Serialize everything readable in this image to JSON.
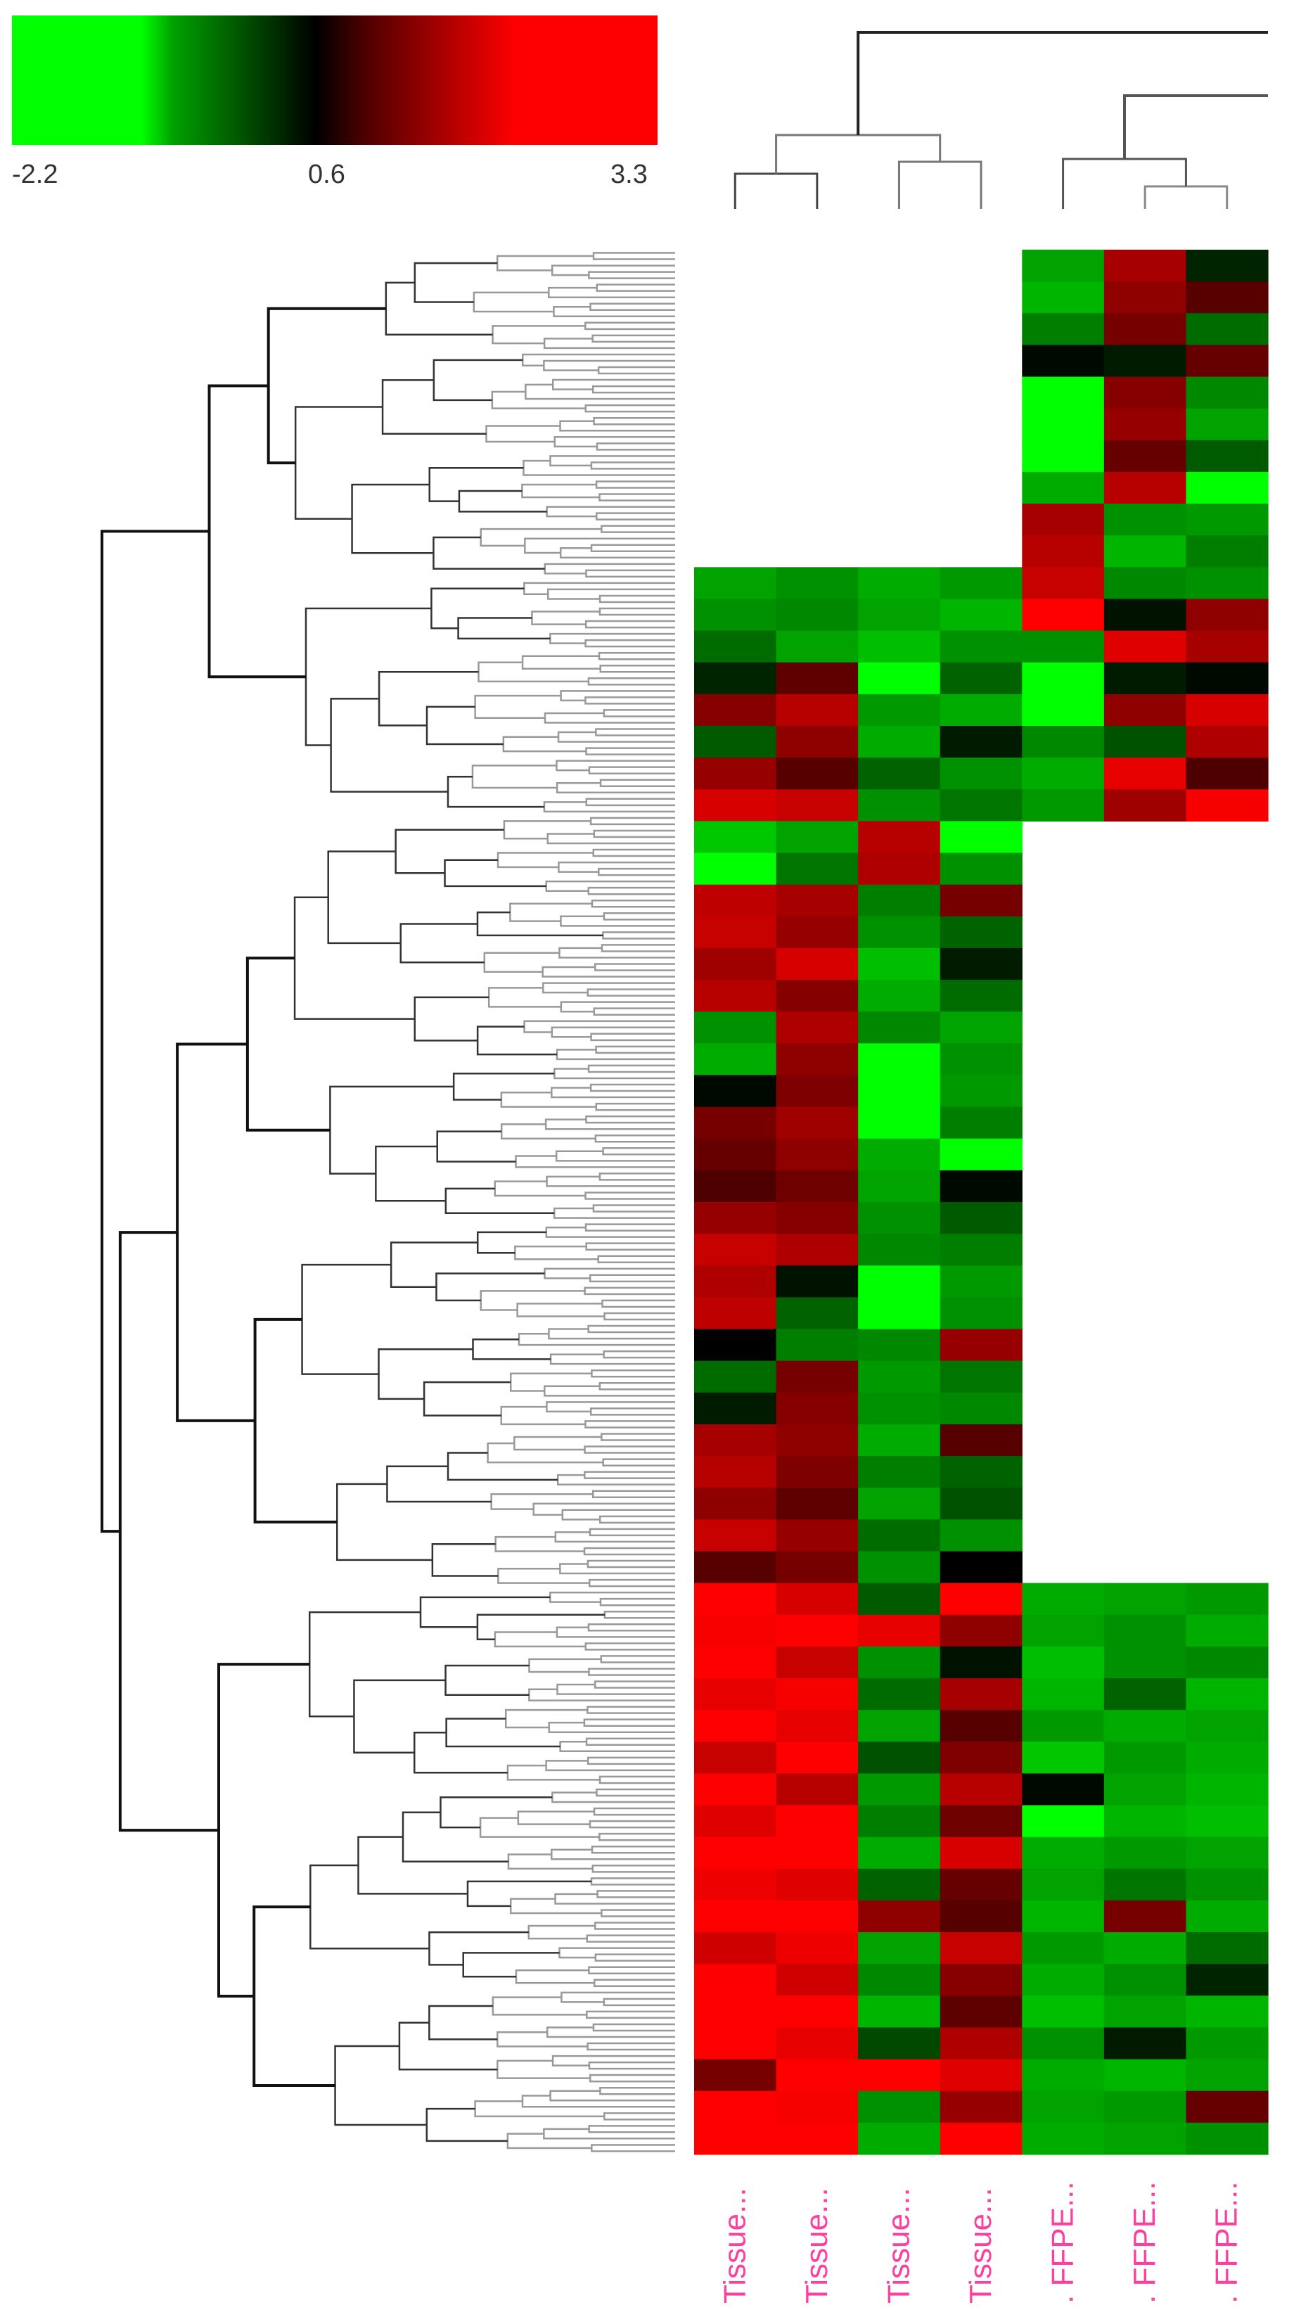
{
  "chart_data": {
    "type": "heatmap",
    "title": "",
    "color_scale": {
      "min": -2.2,
      "mid": 0.6,
      "max": 3.3,
      "tick_labels": [
        "-2.2",
        "0.6",
        "3.3"
      ],
      "colors": {
        "low": "#00ff00",
        "mid": "#000000",
        "high": "#ff0000"
      }
    },
    "columns": [
      "Tissue...",
      "Tissue...",
      "Tissue...",
      "Tissue...",
      ". FFPE...",
      ". FFPE...",
      ". FFPE..."
    ],
    "label_color": "#ff3fa0",
    "row_dendrogram": true,
    "column_dendrogram": true,
    "rows": [
      [
        null,
        null,
        null,
        null,
        -1.2,
        1.8,
        0.2
      ],
      [
        null,
        null,
        null,
        null,
        -1.4,
        1.5,
        0.8
      ],
      [
        null,
        null,
        null,
        null,
        -0.8,
        1.2,
        -0.6
      ],
      [
        null,
        null,
        null,
        null,
        0.5,
        0.3,
        1.0
      ],
      [
        null,
        null,
        null,
        null,
        -2.2,
        1.4,
        -0.9
      ],
      [
        null,
        null,
        null,
        null,
        -2.2,
        1.6,
        -1.2
      ],
      [
        null,
        null,
        null,
        null,
        -2.0,
        1.0,
        -0.4
      ],
      [
        null,
        null,
        null,
        null,
        -1.3,
        2.0,
        -2.0
      ],
      [
        null,
        null,
        null,
        null,
        1.8,
        -1.0,
        -1.1
      ],
      [
        null,
        null,
        null,
        null,
        2.0,
        -1.4,
        -0.8
      ],
      [
        -1.2,
        -1.0,
        -1.3,
        -1.1,
        2.2,
        -0.9,
        -1.0
      ],
      [
        -1.0,
        -0.9,
        -1.2,
        -1.4,
        3.3,
        0.4,
        1.5
      ],
      [
        -0.6,
        -1.2,
        -1.5,
        -1.0,
        -1.0,
        2.5,
        1.8
      ],
      [
        0.2,
        0.9,
        -2.0,
        -0.5,
        -2.2,
        0.3,
        0.5
      ],
      [
        1.4,
        2.0,
        -1.1,
        -1.3,
        -1.8,
        1.5,
        2.4
      ],
      [
        -0.4,
        1.5,
        -1.3,
        0.3,
        -0.9,
        -0.3,
        1.9
      ],
      [
        1.6,
        0.8,
        -0.5,
        -1.0,
        -1.3,
        2.6,
        0.7
      ],
      [
        2.4,
        2.2,
        -1.0,
        -0.7,
        -1.1,
        1.7,
        2.8
      ],
      [
        -1.6,
        -1.2,
        2.0,
        -1.8,
        null,
        null,
        null
      ],
      [
        -2.2,
        -0.7,
        1.9,
        -1.0,
        null,
        null,
        null
      ],
      [
        2.1,
        1.8,
        -0.8,
        1.2,
        null,
        null,
        null
      ],
      [
        2.2,
        1.6,
        -1.0,
        -0.5,
        null,
        null,
        null
      ],
      [
        1.7,
        2.4,
        -1.5,
        0.3,
        null,
        null,
        null
      ],
      [
        2.0,
        1.4,
        -1.3,
        -0.6,
        null,
        null,
        null
      ],
      [
        -1.0,
        1.9,
        -0.9,
        -1.2,
        null,
        null,
        null
      ],
      [
        -1.3,
        1.5,
        -2.2,
        -1.0,
        null,
        null,
        null
      ],
      [
        0.5,
        1.3,
        -2.2,
        -1.1,
        null,
        null,
        null
      ],
      [
        1.2,
        1.7,
        -2.2,
        -0.8,
        null,
        null,
        null
      ],
      [
        1.0,
        1.5,
        -1.3,
        -1.9,
        null,
        null,
        null
      ],
      [
        0.7,
        1.1,
        -1.2,
        0.5,
        null,
        null,
        null
      ],
      [
        1.6,
        1.4,
        -1.0,
        -0.4,
        null,
        null,
        null
      ],
      [
        2.2,
        1.9,
        -0.9,
        -0.8,
        null,
        null,
        null
      ],
      [
        1.9,
        0.4,
        -2.2,
        -1.1,
        null,
        null,
        null
      ],
      [
        2.1,
        -0.5,
        -2.2,
        -1.0,
        null,
        null,
        null
      ],
      [
        0.6,
        -0.8,
        -0.9,
        1.6,
        null,
        null,
        null
      ],
      [
        -0.6,
        1.2,
        -1.1,
        -0.7,
        null,
        null,
        null
      ],
      [
        0.3,
        1.4,
        -1.0,
        -0.9,
        null,
        null,
        null
      ],
      [
        1.8,
        1.5,
        -1.3,
        0.8,
        null,
        null,
        null
      ],
      [
        2.0,
        1.3,
        -0.8,
        -0.5,
        null,
        null,
        null
      ],
      [
        1.5,
        0.9,
        -1.2,
        -0.3,
        null,
        null,
        null
      ],
      [
        2.2,
        1.6,
        -0.6,
        -1.0,
        null,
        null,
        null
      ],
      [
        0.8,
        1.2,
        -1.0,
        0.6,
        null,
        null,
        null
      ],
      [
        3.3,
        2.4,
        -0.4,
        3.3,
        -1.3,
        -1.2,
        -1.1
      ],
      [
        2.8,
        3.0,
        2.6,
        1.5,
        -1.2,
        -1.0,
        -1.3
      ],
      [
        3.0,
        2.2,
        -1.0,
        0.4,
        -1.5,
        -1.0,
        -0.9
      ],
      [
        2.6,
        2.8,
        -0.6,
        1.8,
        -1.4,
        -0.5,
        -1.4
      ],
      [
        3.3,
        2.6,
        -1.2,
        0.8,
        -1.1,
        -1.3,
        -1.2
      ],
      [
        2.2,
        2.9,
        -0.3,
        1.3,
        -1.6,
        -1.1,
        -1.3
      ],
      [
        3.1,
        2.0,
        -1.1,
        2.0,
        0.5,
        -1.2,
        -1.4
      ],
      [
        2.5,
        3.3,
        -0.8,
        1.1,
        -2.2,
        -1.4,
        -1.5
      ],
      [
        3.3,
        3.1,
        -1.3,
        2.4,
        -1.3,
        -1.1,
        -1.2
      ],
      [
        2.7,
        2.5,
        -0.5,
        1.0,
        -1.2,
        -0.7,
        -1.0
      ],
      [
        3.0,
        3.3,
        1.5,
        0.8,
        -1.4,
        1.2,
        -1.3
      ],
      [
        2.3,
        2.7,
        -1.2,
        2.2,
        -1.1,
        -1.3,
        -0.6
      ],
      [
        3.3,
        2.3,
        -0.9,
        1.4,
        -1.3,
        -1.0,
        0.2
      ],
      [
        2.9,
        3.0,
        -1.4,
        0.9,
        -1.5,
        -1.2,
        -1.4
      ],
      [
        3.2,
        2.6,
        -0.2,
        1.9,
        -1.0,
        0.3,
        -1.1
      ],
      [
        1.2,
        3.3,
        3.3,
        2.5,
        -1.3,
        -1.4,
        -1.2
      ],
      [
        3.3,
        2.8,
        -1.0,
        1.6,
        -1.2,
        -1.1,
        1.0
      ],
      [
        3.3,
        3.1,
        -1.3,
        3.0,
        -1.3,
        -1.2,
        -1.0
      ]
    ]
  }
}
